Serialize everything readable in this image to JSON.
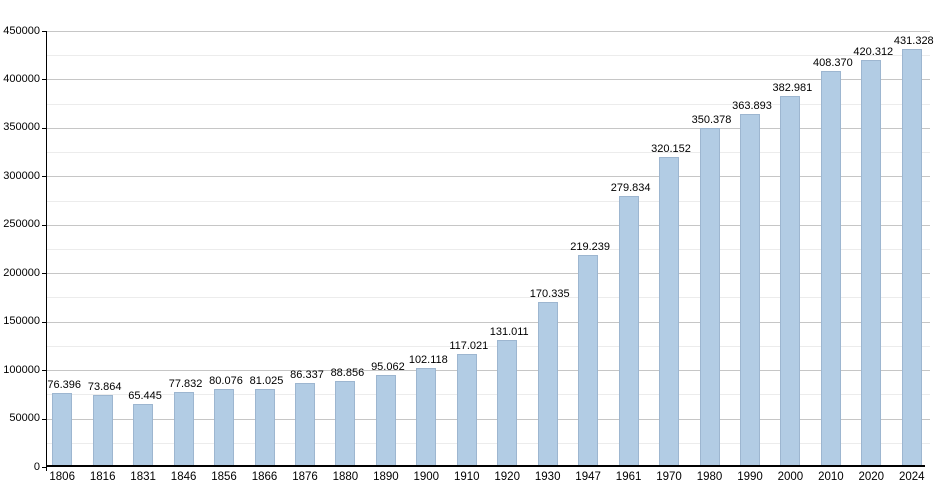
{
  "chart_data": {
    "type": "bar",
    "categories": [
      "1806",
      "1816",
      "1831",
      "1846",
      "1856",
      "1866",
      "1876",
      "1880",
      "1890",
      "1900",
      "1910",
      "1920",
      "1930",
      "1947",
      "1961",
      "1970",
      "1980",
      "1990",
      "2000",
      "2010",
      "2020",
      "2024"
    ],
    "values": [
      76396,
      73864,
      65445,
      77832,
      80076,
      81025,
      86337,
      88856,
      95062,
      102118,
      117021,
      131011,
      170335,
      219239,
      279834,
      320152,
      350378,
      363893,
      382981,
      408370,
      420312,
      431328
    ],
    "value_labels": [
      "76.396",
      "73.864",
      "65.445",
      "77.832",
      "80.076",
      "81.025",
      "86.337",
      "88.856",
      "95.062",
      "102.118",
      "117.021",
      "131.011",
      "170.335",
      "219.239",
      "279.834",
      "320.152",
      "350.378",
      "363.893",
      "382.981",
      "408.370",
      "420.312",
      "431.328"
    ],
    "ylim": [
      0,
      450000
    ],
    "ytick_values": [
      0,
      50000,
      100000,
      150000,
      200000,
      250000,
      300000,
      350000,
      400000,
      450000
    ],
    "ytick_labels": [
      "0",
      "50000",
      "100000",
      "150000",
      "200000",
      "250000",
      "300000",
      "350000",
      "400000",
      "450000"
    ],
    "minor_grid_step": 25000,
    "grid": "horizontal major and minor gridlines",
    "legend_position": "none",
    "colors": {
      "bar_fill": "#b2cce4",
      "bar_border": "#9fb9d3",
      "major_grid": "#c6c6c6",
      "minor_grid": "#ececec",
      "axis": "#000000",
      "text": "#000000",
      "background": "#ffffff"
    }
  }
}
